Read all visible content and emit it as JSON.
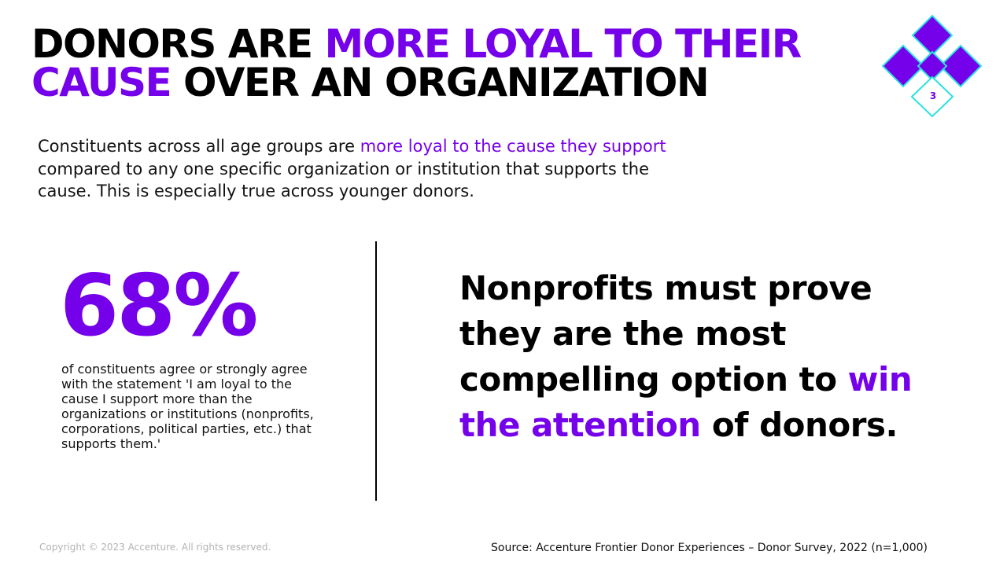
{
  "slide": {
    "title": {
      "part1": "DONORS ARE ",
      "part2": "MORE LOYAL TO THEIR CAUSE",
      "part3": " OVER AN ORGANIZATION"
    },
    "intro": {
      "part1": "Constituents across all age groups are ",
      "part2": "more loyal to the cause they support",
      "part3": " compared to any one specific organization or institution that supports the cause. This is especially true across younger donors."
    },
    "stat": {
      "number": "68%",
      "description": "of constituents agree or strongly agree with the statement 'I am loyal to the cause I support more than the organizations or institutions (nonprofits, corporations, political parties, etc.) that supports them.'"
    },
    "callout": {
      "part1": "Nonprofits must prove they are the most compelling option to ",
      "part2": "win the attention",
      "part3": " of donors."
    },
    "footer": {
      "copyright": "Copyright © 2023 Accenture. All rights reserved.",
      "source": "Source: Accenture Frontier Donor Experiences – Donor Survey, 2022 (n=1,000)"
    },
    "logo": {
      "icon": "diamond-cluster-icon",
      "number": "3"
    },
    "colors": {
      "accent": "#7500ea",
      "outline": "#2de0e0",
      "text": "#000000",
      "muted": "#b3b3b3"
    }
  }
}
